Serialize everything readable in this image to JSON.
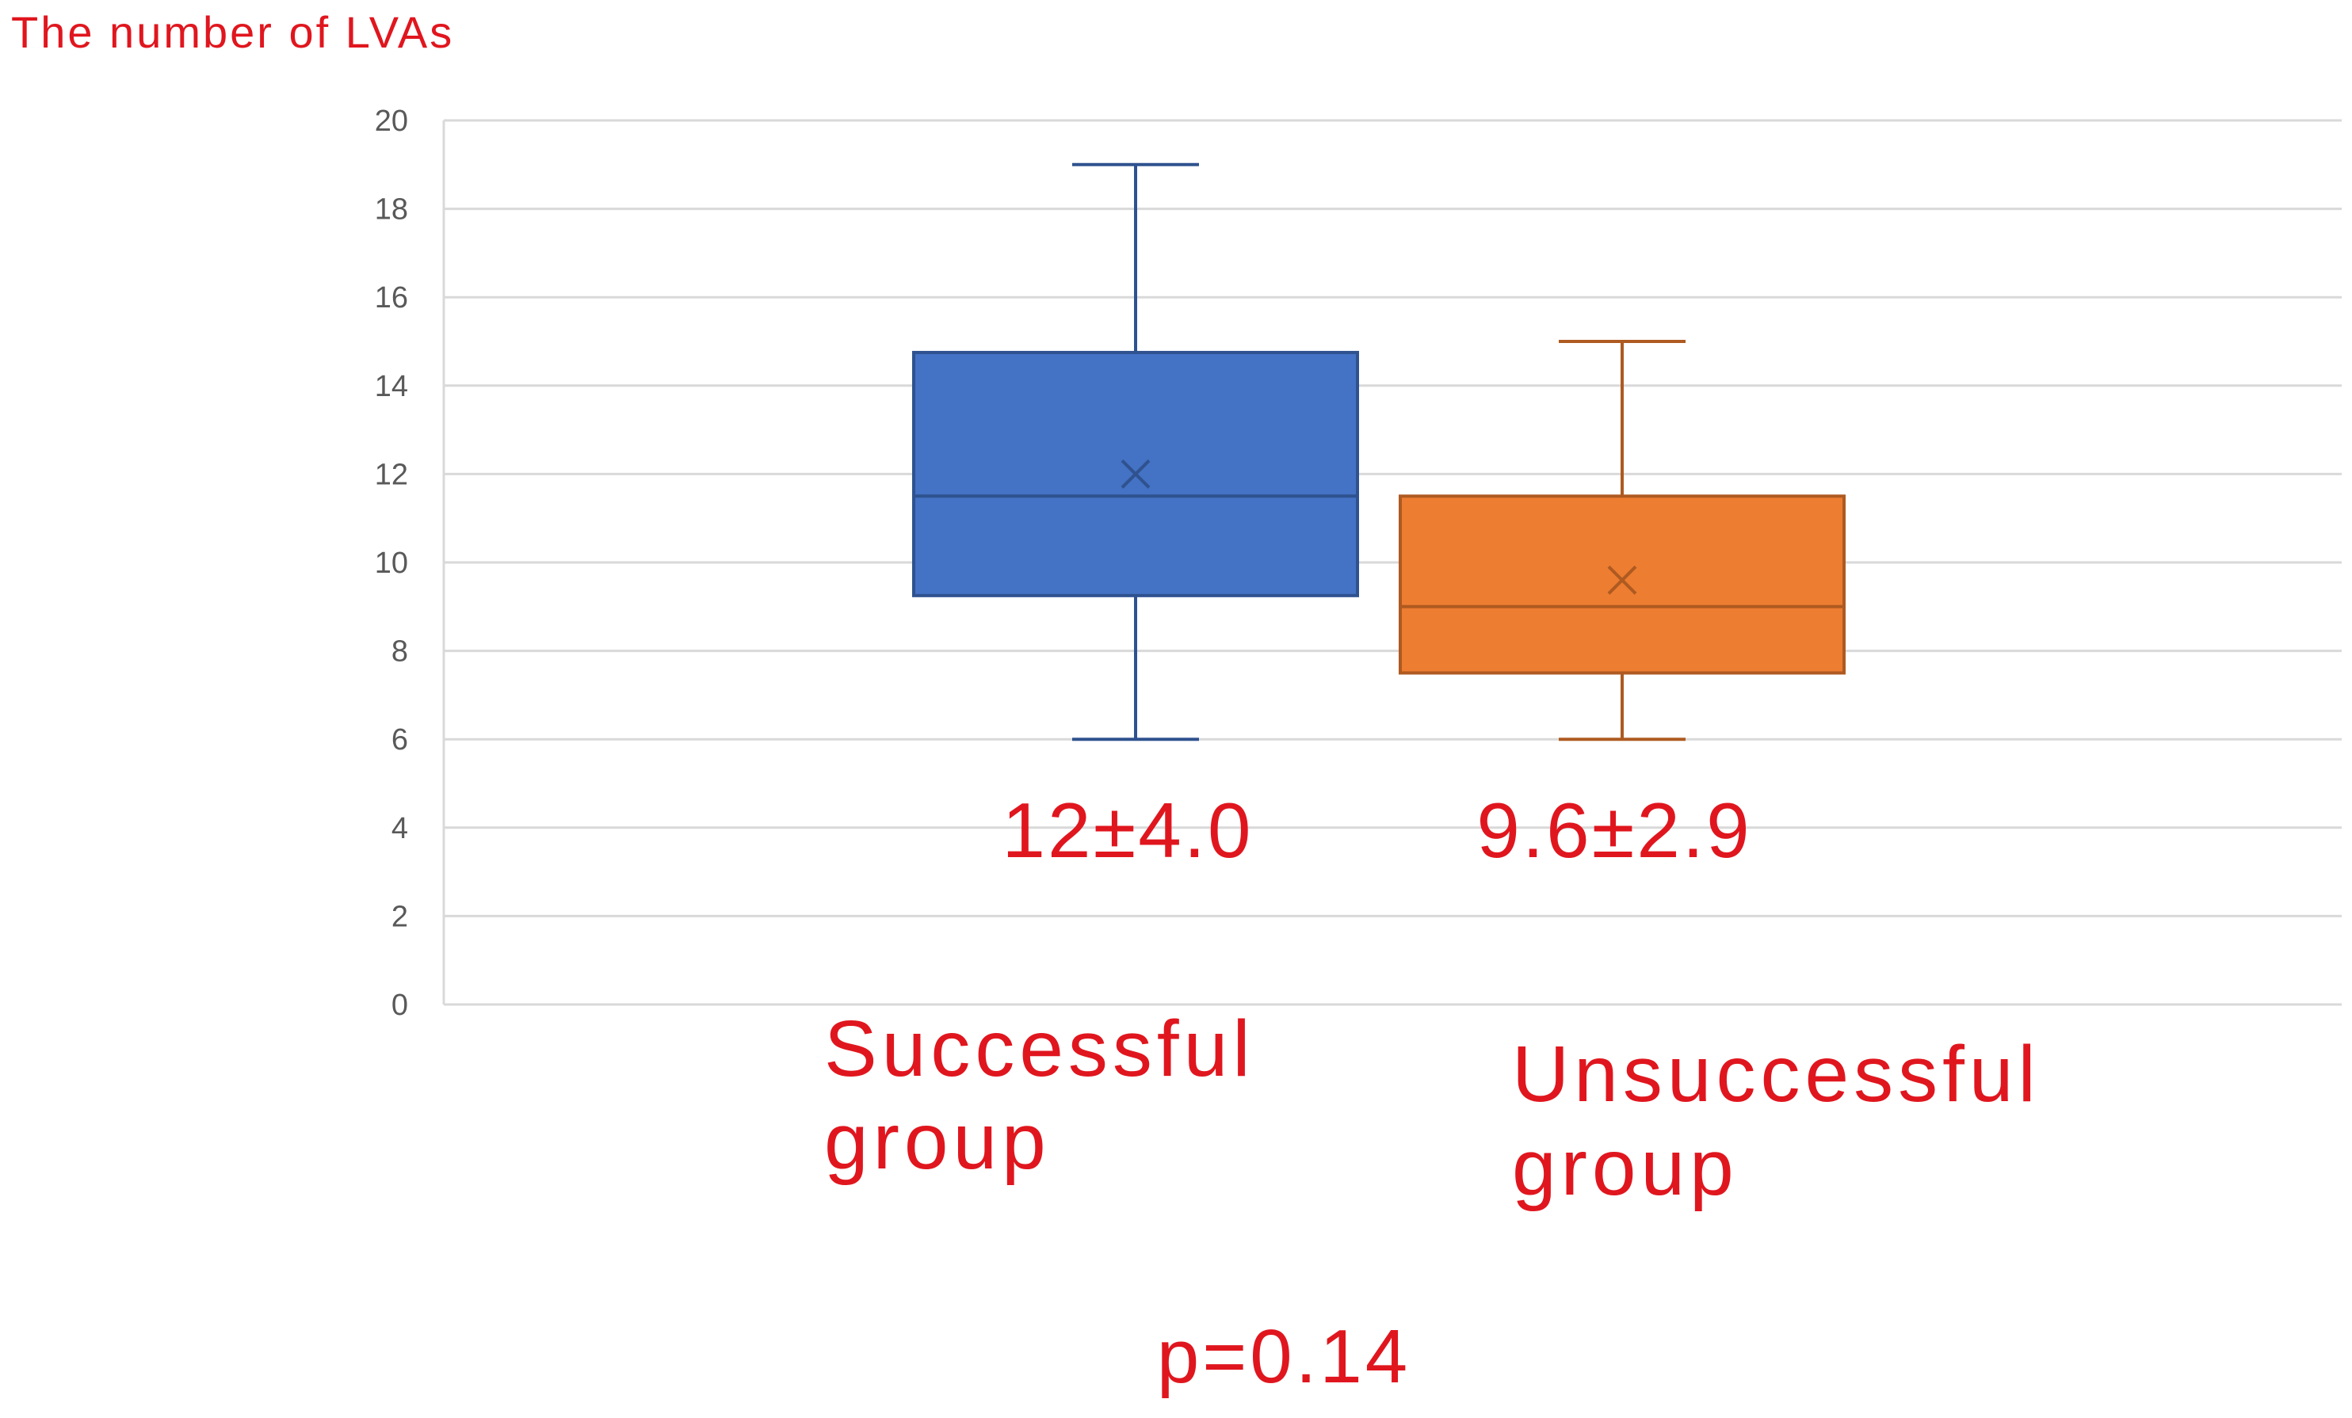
{
  "chart_data": {
    "type": "box",
    "y_axis_title": "The number of LVAs",
    "ylim": [
      0,
      20
    ],
    "y_ticks": [
      "0",
      "2",
      "4",
      "6",
      "8",
      "10",
      "12",
      "14",
      "16",
      "18",
      "20"
    ],
    "grid": true,
    "groups": [
      {
        "label_lines": [
          "Successful",
          "group"
        ],
        "min": 6,
        "q1": 9.25,
        "median": 11.5,
        "q3": 14.75,
        "max": 19,
        "mean": 12,
        "stat_label": "12±4.0",
        "color": "#4472c4",
        "stroke": "#2f528f"
      },
      {
        "label_lines": [
          "Unsuccessful",
          "group"
        ],
        "min": 6,
        "q1": 7.5,
        "median": 9,
        "q3": 11.5,
        "max": 15,
        "mean": 9.6,
        "stat_label": "9.6±2.9",
        "color": "#ed7d31",
        "stroke": "#ae5a21"
      }
    ],
    "p_value_label": "p=0.14",
    "annotation_color": "#e0161e",
    "grid_color": "#d9d9d9"
  }
}
